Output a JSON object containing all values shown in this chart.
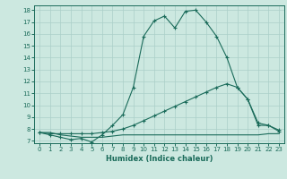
{
  "xlabel": "Humidex (Indice chaleur)",
  "ylabel": "",
  "bg_color": "#cce8e0",
  "grid_color": "#aacfc8",
  "line_color": "#1a6b5a",
  "xlim": [
    -0.5,
    23.5
  ],
  "ylim": [
    6.8,
    18.4
  ],
  "xticks": [
    0,
    1,
    2,
    3,
    4,
    5,
    6,
    7,
    8,
    9,
    10,
    11,
    12,
    13,
    14,
    15,
    16,
    17,
    18,
    19,
    20,
    21,
    22,
    23
  ],
  "yticks": [
    7,
    8,
    9,
    10,
    11,
    12,
    13,
    14,
    15,
    16,
    17,
    18
  ],
  "curve1_x": [
    0,
    1,
    2,
    3,
    4,
    5,
    6,
    7,
    8,
    9,
    10,
    11,
    12,
    13,
    14,
    15,
    16,
    17,
    18,
    19,
    20,
    21,
    22,
    23
  ],
  "curve1_y": [
    7.7,
    7.5,
    7.3,
    7.1,
    7.2,
    6.9,
    7.5,
    8.3,
    9.2,
    11.5,
    15.8,
    17.1,
    17.5,
    16.5,
    17.9,
    18.0,
    17.0,
    15.8,
    14.0,
    11.5,
    10.5,
    8.3,
    8.3,
    7.8
  ],
  "curve2_x": [
    0,
    1,
    2,
    3,
    4,
    5,
    6,
    7,
    8,
    9,
    10,
    11,
    12,
    13,
    14,
    15,
    16,
    17,
    18,
    19,
    20,
    21,
    22,
    23
  ],
  "curve2_y": [
    7.7,
    7.6,
    7.6,
    7.6,
    7.6,
    7.6,
    7.7,
    7.8,
    8.0,
    8.3,
    8.7,
    9.1,
    9.5,
    9.9,
    10.3,
    10.7,
    11.1,
    11.5,
    11.8,
    11.5,
    10.5,
    8.5,
    8.3,
    7.9
  ],
  "curve3_x": [
    0,
    1,
    2,
    3,
    4,
    5,
    6,
    7,
    8,
    9,
    10,
    11,
    12,
    13,
    14,
    15,
    16,
    17,
    18,
    19,
    20,
    21,
    22,
    23
  ],
  "curve3_y": [
    7.7,
    7.7,
    7.5,
    7.4,
    7.3,
    7.3,
    7.3,
    7.4,
    7.5,
    7.5,
    7.5,
    7.5,
    7.5,
    7.5,
    7.5,
    7.5,
    7.5,
    7.5,
    7.5,
    7.5,
    7.5,
    7.5,
    7.6,
    7.6
  ]
}
